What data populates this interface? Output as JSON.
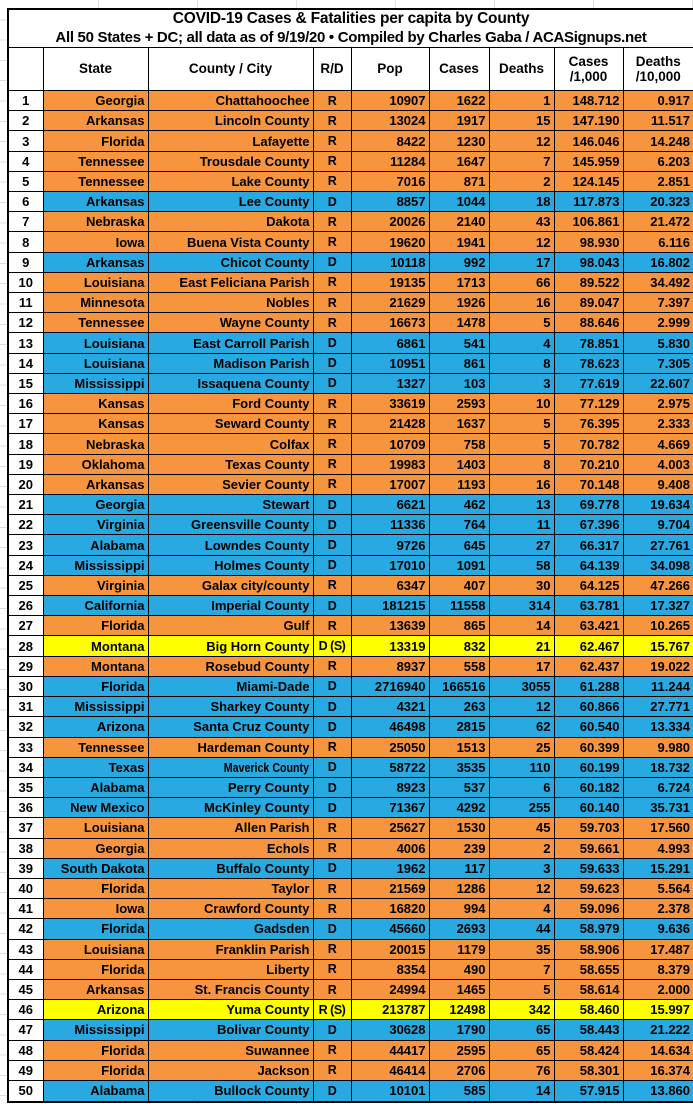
{
  "title": {
    "line1": "COVID-19 Cases & Fatalities per capita by County",
    "line2": "All 50 States + DC; all data as of 9/19/20 • Compiled by Charles Gaba / ACASignups.net"
  },
  "colors": {
    "republican_row": "#F7953E",
    "democrat_row": "#29A9E1",
    "special_row": "#FFFF00"
  },
  "table": {
    "columns": [
      {
        "key": "rank",
        "label": "",
        "label2": "",
        "align": "center"
      },
      {
        "key": "state",
        "label": "State",
        "label2": "",
        "align": "right"
      },
      {
        "key": "county",
        "label": "County / City",
        "label2": "",
        "align": "right"
      },
      {
        "key": "rd",
        "label": "R/D",
        "label2": "",
        "align": "center"
      },
      {
        "key": "pop",
        "label": "Pop",
        "label2": "",
        "align": "right"
      },
      {
        "key": "cases",
        "label": "Cases",
        "label2": "",
        "align": "right"
      },
      {
        "key": "deaths",
        "label": "Deaths",
        "label2": "",
        "align": "right"
      },
      {
        "key": "cases_per_1000",
        "label": "Cases",
        "label2": "/1,000",
        "align": "right"
      },
      {
        "key": "deaths_per_10000",
        "label": "Deaths",
        "label2": "/10,000",
        "align": "right"
      }
    ],
    "narrow_county_ranks": [
      34
    ],
    "rows": [
      [
        "1",
        "Georgia",
        "Chattahoochee",
        "R",
        "10907",
        "1622",
        "1",
        "148.712",
        "0.917"
      ],
      [
        "2",
        "Arkansas",
        "Lincoln County",
        "R",
        "13024",
        "1917",
        "15",
        "147.190",
        "11.517"
      ],
      [
        "3",
        "Florida",
        "Lafayette",
        "R",
        "8422",
        "1230",
        "12",
        "146.046",
        "14.248"
      ],
      [
        "4",
        "Tennessee",
        "Trousdale County",
        "R",
        "11284",
        "1647",
        "7",
        "145.959",
        "6.203"
      ],
      [
        "5",
        "Tennessee",
        "Lake County",
        "R",
        "7016",
        "871",
        "2",
        "124.145",
        "2.851"
      ],
      [
        "6",
        "Arkansas",
        "Lee County",
        "D",
        "8857",
        "1044",
        "18",
        "117.873",
        "20.323"
      ],
      [
        "7",
        "Nebraska",
        "Dakota",
        "R",
        "20026",
        "2140",
        "43",
        "106.861",
        "21.472"
      ],
      [
        "8",
        "Iowa",
        "Buena Vista County",
        "R",
        "19620",
        "1941",
        "12",
        "98.930",
        "6.116"
      ],
      [
        "9",
        "Arkansas",
        "Chicot County",
        "D",
        "10118",
        "992",
        "17",
        "98.043",
        "16.802"
      ],
      [
        "10",
        "Louisiana",
        "East Feliciana Parish",
        "R",
        "19135",
        "1713",
        "66",
        "89.522",
        "34.492"
      ],
      [
        "11",
        "Minnesota",
        "Nobles",
        "R",
        "21629",
        "1926",
        "16",
        "89.047",
        "7.397"
      ],
      [
        "12",
        "Tennessee",
        "Wayne County",
        "R",
        "16673",
        "1478",
        "5",
        "88.646",
        "2.999"
      ],
      [
        "13",
        "Louisiana",
        "East Carroll Parish",
        "D",
        "6861",
        "541",
        "4",
        "78.851",
        "5.830"
      ],
      [
        "14",
        "Louisiana",
        "Madison Parish",
        "D",
        "10951",
        "861",
        "8",
        "78.623",
        "7.305"
      ],
      [
        "15",
        "Mississippi",
        "Issaquena County",
        "D",
        "1327",
        "103",
        "3",
        "77.619",
        "22.607"
      ],
      [
        "16",
        "Kansas",
        "Ford County",
        "R",
        "33619",
        "2593",
        "10",
        "77.129",
        "2.975"
      ],
      [
        "17",
        "Kansas",
        "Seward County",
        "R",
        "21428",
        "1637",
        "5",
        "76.395",
        "2.333"
      ],
      [
        "18",
        "Nebraska",
        "Colfax",
        "R",
        "10709",
        "758",
        "5",
        "70.782",
        "4.669"
      ],
      [
        "19",
        "Oklahoma",
        "Texas County",
        "R",
        "19983",
        "1403",
        "8",
        "70.210",
        "4.003"
      ],
      [
        "20",
        "Arkansas",
        "Sevier County",
        "R",
        "17007",
        "1193",
        "16",
        "70.148",
        "9.408"
      ],
      [
        "21",
        "Georgia",
        "Stewart",
        "D",
        "6621",
        "462",
        "13",
        "69.778",
        "19.634"
      ],
      [
        "22",
        "Virginia",
        "Greensville County",
        "D",
        "11336",
        "764",
        "11",
        "67.396",
        "9.704"
      ],
      [
        "23",
        "Alabama",
        "Lowndes County",
        "D",
        "9726",
        "645",
        "27",
        "66.317",
        "27.761"
      ],
      [
        "24",
        "Mississippi",
        "Holmes County",
        "D",
        "17010",
        "1091",
        "58",
        "64.139",
        "34.098"
      ],
      [
        "25",
        "Virginia",
        "Galax city/county",
        "R",
        "6347",
        "407",
        "30",
        "64.125",
        "47.266"
      ],
      [
        "26",
        "California",
        "Imperial County",
        "D",
        "181215",
        "11558",
        "314",
        "63.781",
        "17.327"
      ],
      [
        "27",
        "Florida",
        "Gulf",
        "R",
        "13639",
        "865",
        "14",
        "63.421",
        "10.265"
      ],
      [
        "28",
        "Montana",
        "Big Horn County",
        "D (S)",
        "13319",
        "832",
        "21",
        "62.467",
        "15.767"
      ],
      [
        "29",
        "Montana",
        "Rosebud County",
        "R",
        "8937",
        "558",
        "17",
        "62.437",
        "19.022"
      ],
      [
        "30",
        "Florida",
        "Miami-Dade",
        "D",
        "2716940",
        "166516",
        "3055",
        "61.288",
        "11.244"
      ],
      [
        "31",
        "Mississippi",
        "Sharkey County",
        "D",
        "4321",
        "263",
        "12",
        "60.866",
        "27.771"
      ],
      [
        "32",
        "Arizona",
        "Santa Cruz County",
        "D",
        "46498",
        "2815",
        "62",
        "60.540",
        "13.334"
      ],
      [
        "33",
        "Tennessee",
        "Hardeman County",
        "R",
        "25050",
        "1513",
        "25",
        "60.399",
        "9.980"
      ],
      [
        "34",
        "Texas",
        "Maverick County",
        "D",
        "58722",
        "3535",
        "110",
        "60.199",
        "18.732"
      ],
      [
        "35",
        "Alabama",
        "Perry County",
        "D",
        "8923",
        "537",
        "6",
        "60.182",
        "6.724"
      ],
      [
        "36",
        "New Mexico",
        "McKinley County",
        "D",
        "71367",
        "4292",
        "255",
        "60.140",
        "35.731"
      ],
      [
        "37",
        "Louisiana",
        "Allen Parish",
        "R",
        "25627",
        "1530",
        "45",
        "59.703",
        "17.560"
      ],
      [
        "38",
        "Georgia",
        "Echols",
        "R",
        "4006",
        "239",
        "2",
        "59.661",
        "4.993"
      ],
      [
        "39",
        "South Dakota",
        "Buffalo County",
        "D",
        "1962",
        "117",
        "3",
        "59.633",
        "15.291"
      ],
      [
        "40",
        "Florida",
        "Taylor",
        "R",
        "21569",
        "1286",
        "12",
        "59.623",
        "5.564"
      ],
      [
        "41",
        "Iowa",
        "Crawford County",
        "R",
        "16820",
        "994",
        "4",
        "59.096",
        "2.378"
      ],
      [
        "42",
        "Florida",
        "Gadsden",
        "D",
        "45660",
        "2693",
        "44",
        "58.979",
        "9.636"
      ],
      [
        "43",
        "Louisiana",
        "Franklin Parish",
        "R",
        "20015",
        "1179",
        "35",
        "58.906",
        "17.487"
      ],
      [
        "44",
        "Florida",
        "Liberty",
        "R",
        "8354",
        "490",
        "7",
        "58.655",
        "8.379"
      ],
      [
        "45",
        "Arkansas",
        "St. Francis County",
        "R",
        "24994",
        "1465",
        "5",
        "58.614",
        "2.000"
      ],
      [
        "46",
        "Arizona",
        "Yuma County",
        "R (S)",
        "213787",
        "12498",
        "342",
        "58.460",
        "15.997"
      ],
      [
        "47",
        "Mississippi",
        "Bolivar County",
        "D",
        "30628",
        "1790",
        "65",
        "58.443",
        "21.222"
      ],
      [
        "48",
        "Florida",
        "Suwannee",
        "R",
        "44417",
        "2595",
        "65",
        "58.424",
        "14.634"
      ],
      [
        "49",
        "Florida",
        "Jackson",
        "R",
        "46414",
        "2706",
        "76",
        "58.301",
        "16.374"
      ],
      [
        "50",
        "Alabama",
        "Bullock County",
        "D",
        "10101",
        "585",
        "14",
        "57.915",
        "13.860"
      ]
    ]
  }
}
